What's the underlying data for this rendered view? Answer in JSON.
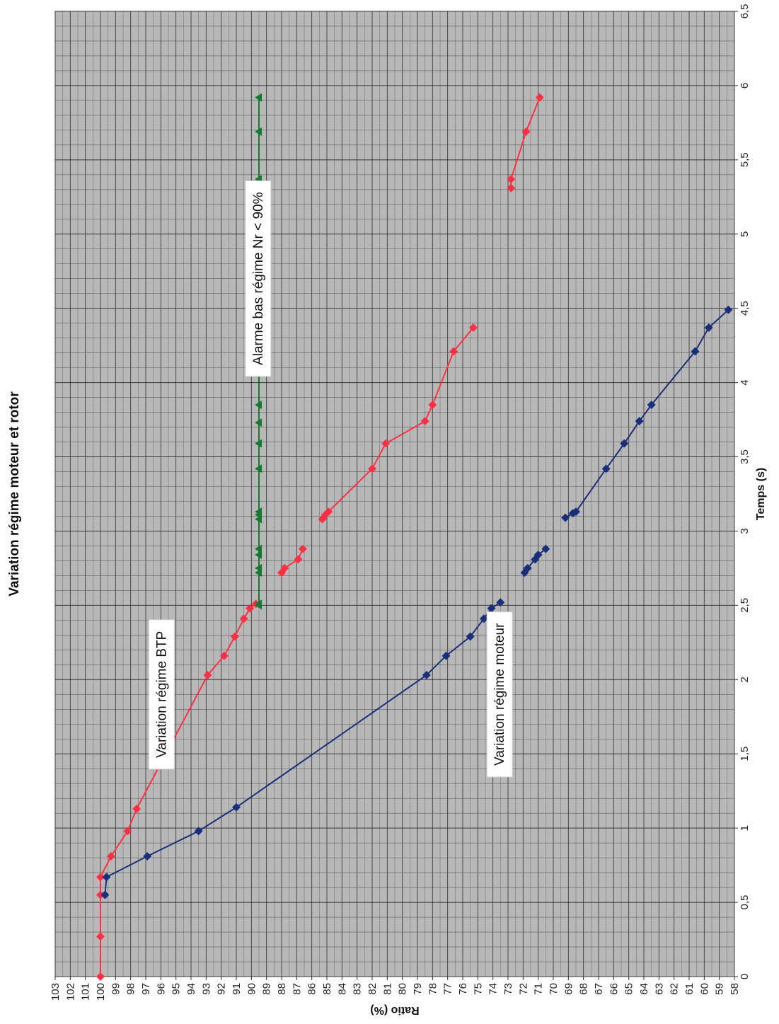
{
  "chart_data": {
    "type": "line",
    "title": "Variation régime moteur et rotor",
    "xlabel": "Temps (s)",
    "ylabel": "Ratio (%)",
    "xlim": [
      0,
      6.5
    ],
    "ylim": [
      58,
      103
    ],
    "x_ticks": [
      "0",
      "0,5",
      "1",
      "1,5",
      "2",
      "2,5",
      "3",
      "3,5",
      "4",
      "4,5",
      "5",
      "5,5",
      "6",
      "6,5"
    ],
    "y_ticks": [
      "58",
      "59",
      "60",
      "61",
      "62",
      "63",
      "64",
      "65",
      "66",
      "67",
      "68",
      "69",
      "70",
      "71",
      "72",
      "73",
      "74",
      "75",
      "76",
      "77",
      "78",
      "79",
      "80",
      "81",
      "82",
      "83",
      "84",
      "85",
      "86",
      "87",
      "88",
      "89",
      "90",
      "91",
      "92",
      "93",
      "94",
      "95",
      "96",
      "97",
      "98",
      "99",
      "100",
      "101",
      "102",
      "103"
    ],
    "grid": true,
    "background_color": "#b8b8b8",
    "orientation": "rotated 90° counter-clockwise on the page",
    "series": [
      {
        "key": "btp",
        "color": "#ff3045",
        "marker": "diamond",
        "segments": [
          [
            [
              0,
              100
            ],
            [
              0.27,
              100
            ],
            [
              0.55,
              100
            ],
            [
              0.67,
              100
            ],
            [
              0.81,
              99.3
            ],
            [
              0.98,
              98.2
            ],
            [
              1.13,
              97.6
            ],
            [
              2.03,
              92.9
            ],
            [
              2.16,
              91.8
            ],
            [
              2.29,
              91.1
            ],
            [
              2.41,
              90.5
            ],
            [
              2.48,
              90.1
            ],
            [
              2.51,
              89.7
            ]
          ],
          [
            [
              2.72,
              88.0
            ],
            [
              2.75,
              87.8
            ],
            [
              2.81,
              86.9
            ],
            [
              2.88,
              86.6
            ]
          ],
          [
            [
              3.08,
              85.3
            ],
            [
              3.11,
              85.1
            ],
            [
              3.13,
              84.9
            ],
            [
              3.42,
              82.0
            ],
            [
              3.59,
              81.1
            ],
            [
              3.74,
              78.5
            ],
            [
              3.85,
              78.0
            ],
            [
              4.21,
              76.6
            ],
            [
              4.37,
              75.3
            ]
          ],
          [
            [
              5.31,
              72.8
            ],
            [
              5.37,
              72.8
            ],
            [
              5.69,
              71.8
            ],
            [
              5.92,
              70.9
            ]
          ]
        ]
      },
      {
        "key": "moteur",
        "color": "#1a2f7a",
        "marker": "diamond",
        "segments": [
          [
            [
              0.55,
              99.7
            ],
            [
              0.67,
              99.6
            ],
            [
              0.81,
              96.9
            ],
            [
              0.98,
              93.5
            ],
            [
              1.14,
              91.0
            ],
            [
              2.03,
              78.4
            ],
            [
              2.16,
              77.1
            ],
            [
              2.29,
              75.5
            ],
            [
              2.41,
              74.6
            ],
            [
              2.48,
              74.1
            ],
            [
              2.52,
              73.5
            ]
          ],
          [
            [
              2.72,
              71.9
            ],
            [
              2.75,
              71.7
            ],
            [
              2.81,
              71.2
            ],
            [
              2.84,
              71.0
            ],
            [
              2.88,
              70.5
            ]
          ],
          [
            [
              3.09,
              69.2
            ],
            [
              3.12,
              68.7
            ],
            [
              3.13,
              68.5
            ],
            [
              3.42,
              66.5
            ],
            [
              3.59,
              65.3
            ],
            [
              3.74,
              64.3
            ],
            [
              3.85,
              63.5
            ],
            [
              4.21,
              60.6
            ],
            [
              4.37,
              59.7
            ],
            [
              4.49,
              58.4
            ]
          ]
        ]
      },
      {
        "key": "alarme",
        "color": "#157a2f",
        "marker": "triangle",
        "segments": [
          [
            [
              2.5,
              89.5
            ],
            [
              2.51,
              89.5
            ],
            [
              2.72,
              89.5
            ],
            [
              2.75,
              89.5
            ],
            [
              2.84,
              89.5
            ],
            [
              2.88,
              89.5
            ],
            [
              3.08,
              89.5
            ],
            [
              3.11,
              89.5
            ],
            [
              3.13,
              89.5
            ],
            [
              3.42,
              89.5
            ],
            [
              3.59,
              89.5
            ],
            [
              3.73,
              89.5
            ],
            [
              3.85,
              89.5
            ],
            [
              4.21,
              89.5
            ],
            [
              4.37,
              89.5
            ],
            [
              4.48,
              89.5
            ],
            [
              5.31,
              89.5
            ],
            [
              5.37,
              89.5
            ],
            [
              5.69,
              89.5
            ],
            [
              5.92,
              89.5
            ]
          ]
        ]
      }
    ],
    "annotations": [
      {
        "text": "Variation régime BTP",
        "x": 1.9,
        "y": 96.0
      },
      {
        "text": "Variation régime moteur",
        "x": 1.9,
        "y": 73.6
      },
      {
        "text": "Alarme bas régime Nr < 90%",
        "x": 4.7,
        "y": 89.6
      }
    ]
  }
}
